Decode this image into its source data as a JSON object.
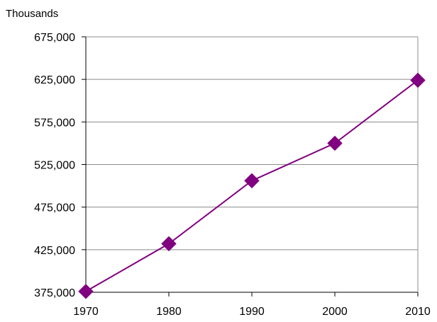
{
  "chart_data": {
    "type": "line",
    "unit_label": "Thousands",
    "x": [
      "1970",
      "1980",
      "1990",
      "2000",
      "2010"
    ],
    "series": [
      {
        "values": [
          376000,
          432000,
          506000,
          550000,
          624000
        ],
        "color": "#800080",
        "marker": "diamond"
      }
    ],
    "yticks": [
      "375,000",
      "425,000",
      "475,000",
      "525,000",
      "575,000",
      "625,000",
      "675,000"
    ],
    "ylim": [
      375000,
      675000
    ],
    "grid": true,
    "legend": "none"
  }
}
